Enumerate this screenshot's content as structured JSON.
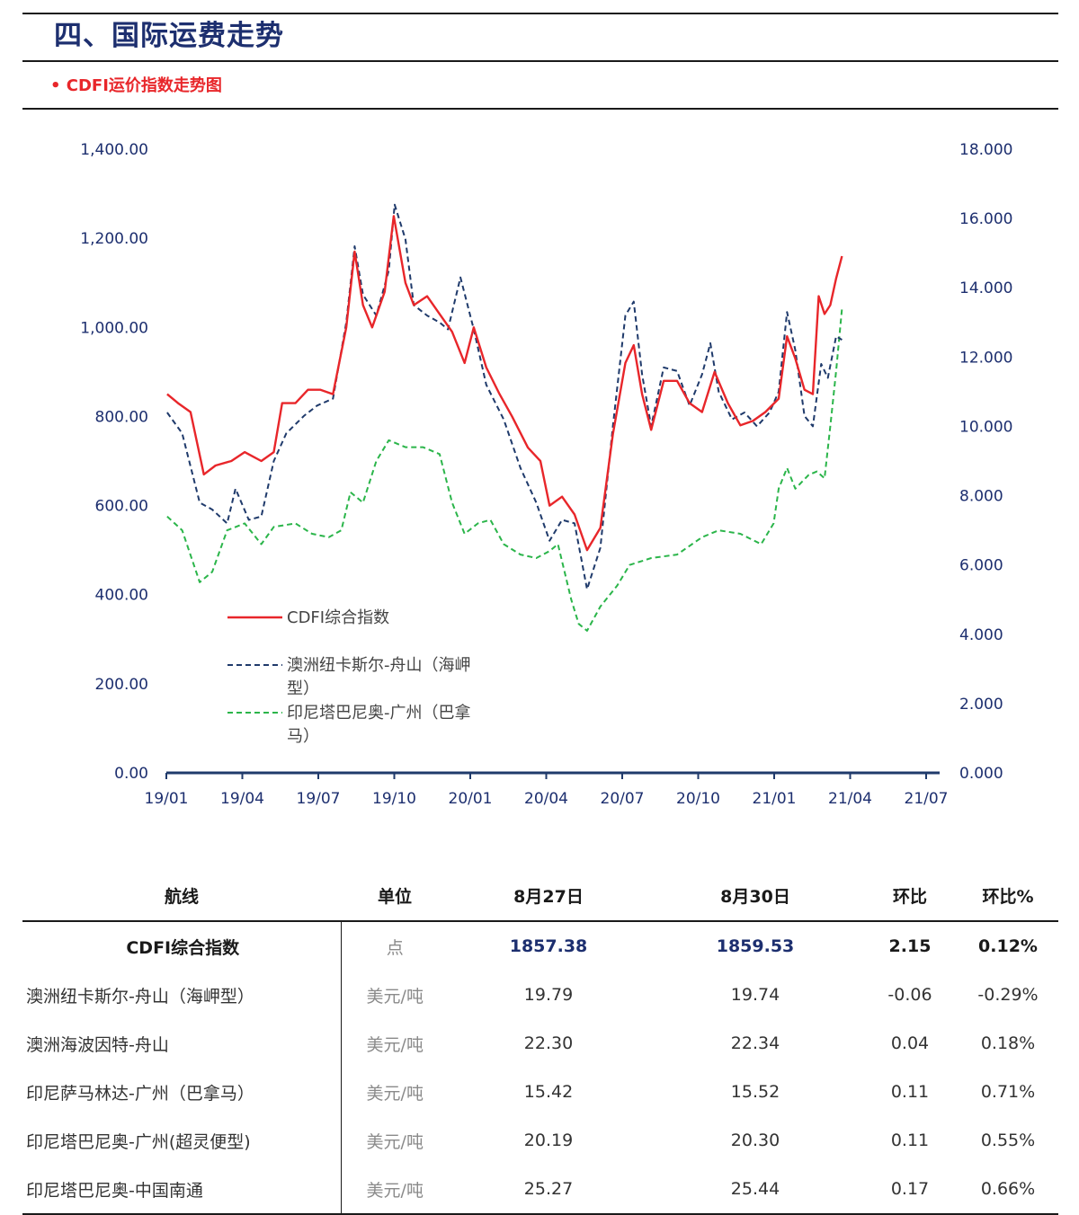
{
  "header": {
    "section_title": "四、国际运费走势",
    "sub_title": "• CDFI运价指数走势图"
  },
  "colors": {
    "title_blue": "#1d2f6f",
    "red": "#e8262a",
    "navy": "#1f3a6b",
    "green": "#2bb54a"
  },
  "chart_data": {
    "type": "line",
    "x_tick_labels": [
      "19/01",
      "19/04",
      "19/07",
      "19/10",
      "20/01",
      "20/04",
      "20/07",
      "20/10",
      "21/01",
      "21/04",
      "21/07"
    ],
    "y_left_tick_labels": [
      "0.00",
      "200.00",
      "400.00",
      "600.00",
      "800.00",
      "1,000.00",
      "1,200.00",
      "1,400.00"
    ],
    "y_right_tick_labels": [
      "0.000",
      "2.000",
      "4.000",
      "6.000",
      "8.000",
      "10.000",
      "12.000",
      "14.000",
      "16.000",
      "18.000"
    ],
    "ylim_left": [
      0,
      1400
    ],
    "ylim_right": [
      0,
      18
    ],
    "xlim": [
      "2019-01",
      "2021-07"
    ],
    "grid": false,
    "legend_position": "bottom-left",
    "series": [
      {
        "name": "CDFI综合指数",
        "axis": "left",
        "style": "solid",
        "color": "#e8262a",
        "points": [
          [
            "2019-01-02",
            850
          ],
          [
            "2019-01-15",
            830
          ],
          [
            "2019-01-30",
            810
          ],
          [
            "2019-02-15",
            670
          ],
          [
            "2019-03-01",
            690
          ],
          [
            "2019-03-20",
            700
          ],
          [
            "2019-04-05",
            720
          ],
          [
            "2019-04-25",
            700
          ],
          [
            "2019-05-10",
            720
          ],
          [
            "2019-05-20",
            830
          ],
          [
            "2019-06-05",
            830
          ],
          [
            "2019-06-20",
            860
          ],
          [
            "2019-07-05",
            860
          ],
          [
            "2019-07-20",
            850
          ],
          [
            "2019-08-05",
            1000
          ],
          [
            "2019-08-15",
            1170
          ],
          [
            "2019-08-25",
            1050
          ],
          [
            "2019-09-05",
            1000
          ],
          [
            "2019-09-20",
            1080
          ],
          [
            "2019-10-01",
            1250
          ],
          [
            "2019-10-15",
            1100
          ],
          [
            "2019-10-25",
            1050
          ],
          [
            "2019-11-10",
            1070
          ],
          [
            "2019-11-25",
            1030
          ],
          [
            "2019-12-10",
            990
          ],
          [
            "2019-12-25",
            920
          ],
          [
            "2020-01-05",
            1000
          ],
          [
            "2020-01-20",
            910
          ],
          [
            "2020-02-05",
            850
          ],
          [
            "2020-02-20",
            800
          ],
          [
            "2020-03-10",
            730
          ],
          [
            "2020-03-25",
            700
          ],
          [
            "2020-04-05",
            600
          ],
          [
            "2020-04-20",
            620
          ],
          [
            "2020-05-05",
            580
          ],
          [
            "2020-05-20",
            500
          ],
          [
            "2020-06-05",
            550
          ],
          [
            "2020-06-20",
            760
          ],
          [
            "2020-07-05",
            920
          ],
          [
            "2020-07-15",
            960
          ],
          [
            "2020-07-25",
            850
          ],
          [
            "2020-08-05",
            770
          ],
          [
            "2020-08-20",
            880
          ],
          [
            "2020-09-05",
            880
          ],
          [
            "2020-09-20",
            830
          ],
          [
            "2020-10-05",
            810
          ],
          [
            "2020-10-20",
            900
          ],
          [
            "2020-11-05",
            830
          ],
          [
            "2020-11-20",
            780
          ],
          [
            "2020-12-05",
            790
          ],
          [
            "2020-12-20",
            810
          ],
          [
            "2021-01-05",
            840
          ],
          [
            "2021-01-15",
            980
          ],
          [
            "2021-01-25",
            930
          ],
          [
            "2021-02-05",
            860
          ],
          [
            "2021-02-15",
            850
          ],
          [
            "2021-02-22",
            1070
          ],
          [
            "2021-03-01",
            1030
          ],
          [
            "2021-03-08",
            1050
          ],
          [
            "2021-03-15",
            1110
          ],
          [
            "2021-03-22",
            1160
          ]
        ]
      },
      {
        "name": "澳洲纽卡斯尔-舟山（海岬型）",
        "axis": "right",
        "style": "dashed",
        "color": "#1f3a6b",
        "points": [
          [
            "2019-01-02",
            10.4
          ],
          [
            "2019-01-20",
            9.8
          ],
          [
            "2019-02-10",
            7.8
          ],
          [
            "2019-02-25",
            7.6
          ],
          [
            "2019-03-15",
            7.2
          ],
          [
            "2019-03-25",
            8.2
          ],
          [
            "2019-04-10",
            7.3
          ],
          [
            "2019-04-25",
            7.4
          ],
          [
            "2019-05-10",
            9.0
          ],
          [
            "2019-05-25",
            9.8
          ],
          [
            "2019-06-15",
            10.3
          ],
          [
            "2019-07-01",
            10.6
          ],
          [
            "2019-07-20",
            10.8
          ],
          [
            "2019-08-05",
            13.0
          ],
          [
            "2019-08-15",
            15.2
          ],
          [
            "2019-08-25",
            13.8
          ],
          [
            "2019-09-10",
            13.2
          ],
          [
            "2019-09-25",
            14.5
          ],
          [
            "2019-10-02",
            16.4
          ],
          [
            "2019-10-15",
            15.4
          ],
          [
            "2019-10-25",
            13.5
          ],
          [
            "2019-11-10",
            13.2
          ],
          [
            "2019-11-25",
            13.0
          ],
          [
            "2019-12-05",
            12.8
          ],
          [
            "2019-12-20",
            14.3
          ],
          [
            "2020-01-05",
            12.8
          ],
          [
            "2020-01-20",
            11.2
          ],
          [
            "2020-02-10",
            10.2
          ],
          [
            "2020-03-01",
            8.8
          ],
          [
            "2020-03-20",
            7.8
          ],
          [
            "2020-04-05",
            6.7
          ],
          [
            "2020-04-20",
            7.3
          ],
          [
            "2020-05-05",
            7.2
          ],
          [
            "2020-05-20",
            5.3
          ],
          [
            "2020-06-05",
            6.5
          ],
          [
            "2020-06-20",
            10.0
          ],
          [
            "2020-07-05",
            13.2
          ],
          [
            "2020-07-15",
            13.6
          ],
          [
            "2020-07-25",
            11.5
          ],
          [
            "2020-08-05",
            10.0
          ],
          [
            "2020-08-20",
            11.7
          ],
          [
            "2020-09-05",
            11.6
          ],
          [
            "2020-09-20",
            10.6
          ],
          [
            "2020-10-05",
            11.5
          ],
          [
            "2020-10-15",
            12.4
          ],
          [
            "2020-10-25",
            11.0
          ],
          [
            "2020-11-10",
            10.2
          ],
          [
            "2020-11-25",
            10.4
          ],
          [
            "2020-12-10",
            10.0
          ],
          [
            "2020-12-25",
            10.4
          ],
          [
            "2021-01-05",
            11.0
          ],
          [
            "2021-01-15",
            13.3
          ],
          [
            "2021-01-25",
            12.2
          ],
          [
            "2021-02-05",
            10.3
          ],
          [
            "2021-02-15",
            10.0
          ],
          [
            "2021-02-25",
            11.8
          ],
          [
            "2021-03-05",
            11.4
          ],
          [
            "2021-03-15",
            12.6
          ],
          [
            "2021-03-22",
            12.5
          ]
        ]
      },
      {
        "name": "印尼塔巴尼奥-广州（巴拿马）",
        "axis": "right",
        "style": "dashed",
        "color": "#2bb54a",
        "points": [
          [
            "2019-01-02",
            7.4
          ],
          [
            "2019-01-20",
            7.0
          ],
          [
            "2019-02-10",
            5.5
          ],
          [
            "2019-02-25",
            5.8
          ],
          [
            "2019-03-15",
            7.0
          ],
          [
            "2019-04-05",
            7.2
          ],
          [
            "2019-04-25",
            6.6
          ],
          [
            "2019-05-10",
            7.1
          ],
          [
            "2019-06-05",
            7.2
          ],
          [
            "2019-06-25",
            6.9
          ],
          [
            "2019-07-15",
            6.8
          ],
          [
            "2019-07-30",
            7.0
          ],
          [
            "2019-08-10",
            8.1
          ],
          [
            "2019-08-25",
            7.8
          ],
          [
            "2019-09-10",
            9.0
          ],
          [
            "2019-09-25",
            9.6
          ],
          [
            "2019-10-15",
            9.4
          ],
          [
            "2019-11-05",
            9.4
          ],
          [
            "2019-11-25",
            9.2
          ],
          [
            "2019-12-10",
            7.8
          ],
          [
            "2019-12-25",
            6.9
          ],
          [
            "2020-01-10",
            7.2
          ],
          [
            "2020-01-25",
            7.3
          ],
          [
            "2020-02-10",
            6.6
          ],
          [
            "2020-03-01",
            6.3
          ],
          [
            "2020-03-20",
            6.2
          ],
          [
            "2020-04-05",
            6.4
          ],
          [
            "2020-04-15",
            6.6
          ],
          [
            "2020-05-01",
            5.0
          ],
          [
            "2020-05-10",
            4.3
          ],
          [
            "2020-05-20",
            4.1
          ],
          [
            "2020-06-05",
            4.8
          ],
          [
            "2020-06-25",
            5.4
          ],
          [
            "2020-07-10",
            6.0
          ],
          [
            "2020-08-05",
            6.2
          ],
          [
            "2020-09-05",
            6.3
          ],
          [
            "2020-10-05",
            6.8
          ],
          [
            "2020-10-25",
            7.0
          ],
          [
            "2020-11-20",
            6.9
          ],
          [
            "2020-12-15",
            6.6
          ],
          [
            "2020-12-30",
            7.2
          ],
          [
            "2021-01-05",
            8.2
          ],
          [
            "2021-01-15",
            8.8
          ],
          [
            "2021-01-25",
            8.2
          ],
          [
            "2021-02-10",
            8.6
          ],
          [
            "2021-02-20",
            8.7
          ],
          [
            "2021-03-01",
            8.5
          ],
          [
            "2021-03-08",
            10.0
          ],
          [
            "2021-03-15",
            11.6
          ],
          [
            "2021-03-22",
            13.4
          ]
        ]
      }
    ]
  },
  "legend": {
    "items": [
      {
        "label": "CDFI综合指数",
        "label_line2": ""
      },
      {
        "label": "澳洲纽卡斯尔-舟山（海岬",
        "label_line2": "型）"
      },
      {
        "label": "印尼塔巴尼奥-广州（巴拿",
        "label_line2": "马）"
      }
    ]
  },
  "table": {
    "headers": [
      "航线",
      "单位",
      "8月27日",
      "8月30日",
      "环比",
      "环比%"
    ],
    "rows": [
      {
        "route": "CDFI综合指数",
        "unit": "点",
        "v1": "1857.38",
        "v2": "1859.53",
        "chg": "2.15",
        "pct": "0.12%"
      },
      {
        "route": "澳洲纽卡斯尔-舟山（海岬型）",
        "unit": "美元/吨",
        "v1": "19.79",
        "v2": "19.74",
        "chg": "-0.06",
        "pct": "-0.29%"
      },
      {
        "route": "澳洲海波因特-舟山",
        "unit": "美元/吨",
        "v1": "22.30",
        "v2": "22.34",
        "chg": "0.04",
        "pct": "0.18%"
      },
      {
        "route": "印尼萨马林达-广州（巴拿马）",
        "unit": "美元/吨",
        "v1": "15.42",
        "v2": "15.52",
        "chg": "0.11",
        "pct": "0.71%"
      },
      {
        "route": "印尼塔巴尼奥-广州(超灵便型)",
        "unit": "美元/吨",
        "v1": "20.19",
        "v2": "20.30",
        "chg": "0.11",
        "pct": "0.55%"
      },
      {
        "route": "印尼塔巴尼奥-中国南通",
        "unit": "美元/吨",
        "v1": "25.27",
        "v2": "25.44",
        "chg": "0.17",
        "pct": "0.66%"
      }
    ]
  }
}
